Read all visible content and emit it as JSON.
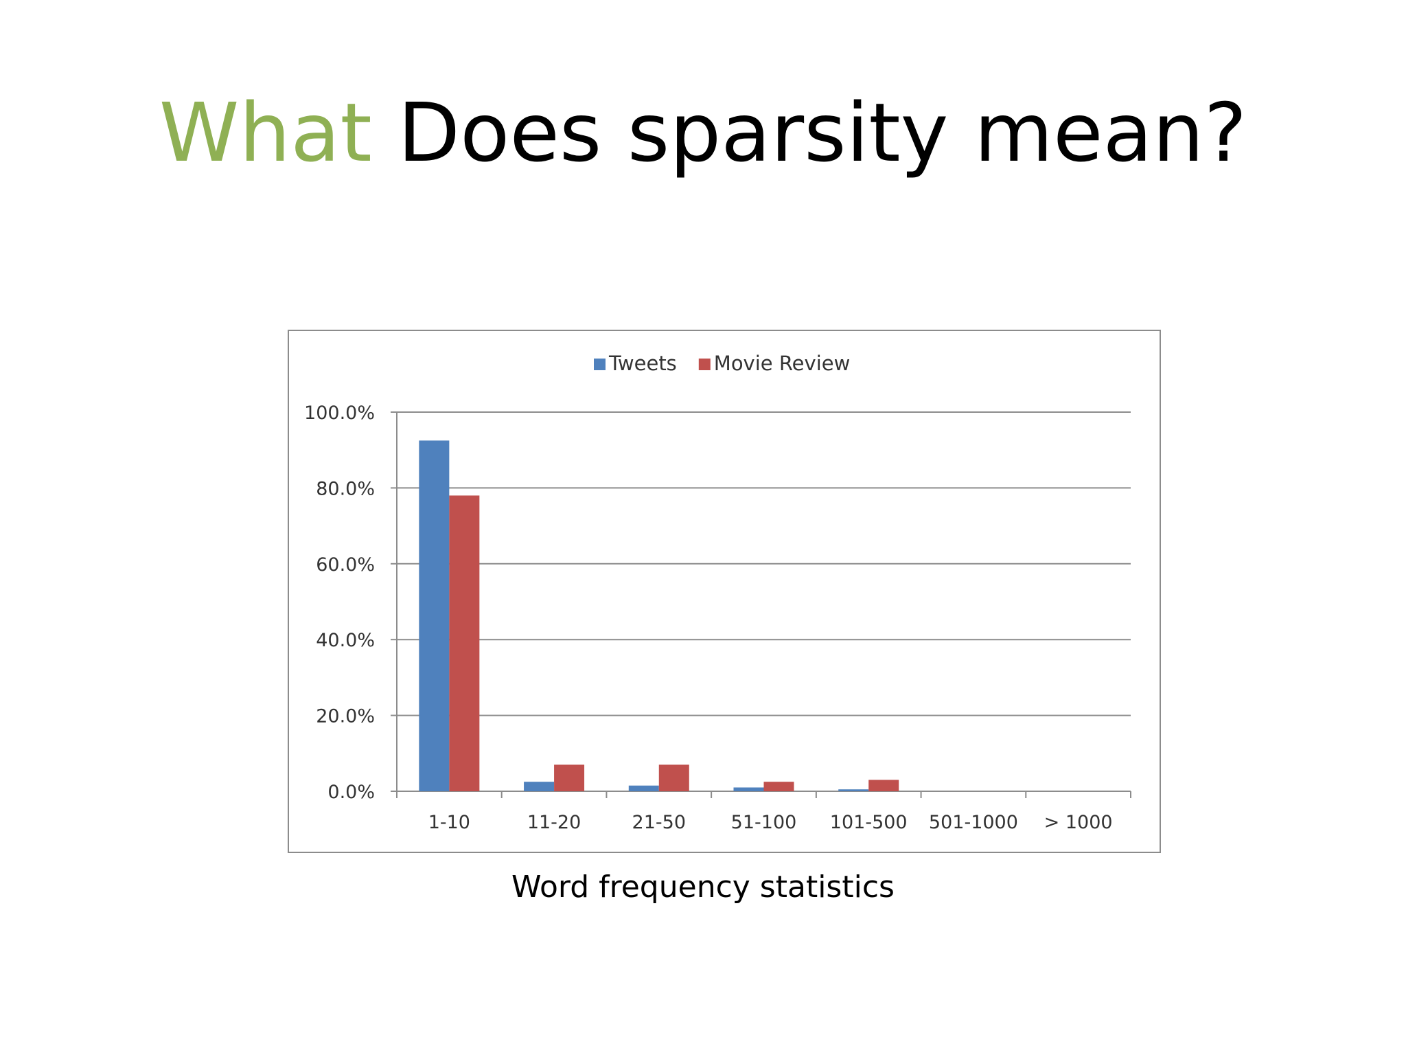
{
  "slide": {
    "title_accent": "What",
    "title_rest": "Does sparsity mean?",
    "caption": "Word frequency statistics",
    "accent_color": "#8fb054"
  },
  "chart_data": {
    "type": "bar",
    "categories": [
      "1-10",
      "11-20",
      "21-50",
      "51-100",
      "101-500",
      "501-1000",
      "> 1000"
    ],
    "series": [
      {
        "name": "Tweets",
        "color": "#4f81bd",
        "values": [
          92.5,
          2.5,
          1.5,
          1.0,
          0.5,
          0.0,
          0.0
        ]
      },
      {
        "name": "Movie Review",
        "color": "#c0504d",
        "values": [
          78.0,
          7.0,
          7.0,
          2.5,
          3.0,
          0.0,
          0.0
        ]
      }
    ],
    "ylim": [
      0,
      100
    ],
    "yticks": [
      "0.0%",
      "20.0%",
      "40.0%",
      "60.0%",
      "80.0%",
      "100.0%"
    ],
    "y_unit": "percent",
    "grid": true,
    "legend_position": "top-center",
    "title": "",
    "xlabel": "",
    "ylabel": ""
  }
}
